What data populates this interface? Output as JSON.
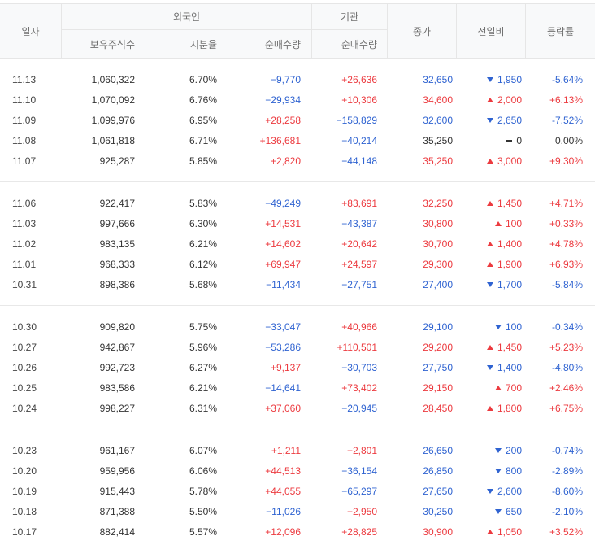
{
  "header": {
    "date": "일자",
    "foreign": "외국인",
    "institution": "기관",
    "close": "종가",
    "change": "전일비",
    "rate": "등락률",
    "foreign_shares": "보유주식수",
    "foreign_ratio": "지분율",
    "foreign_net": "순매수량",
    "institution_net": "순매수량"
  },
  "colors": {
    "up": "#ec3a3f",
    "down": "#2f63d1",
    "flat": "#333333"
  },
  "icons": {
    "up": "triangle-up-icon",
    "down": "triangle-down-icon",
    "flat": "dash-icon"
  },
  "groups": [
    {
      "rows": [
        {
          "date": "11.13",
          "foreign_shares": "1,060,322",
          "foreign_ratio": "6.70%",
          "foreign_net": "−9,770",
          "institution_net": "+26,636",
          "close": "32,650",
          "trend": "down",
          "change": "1,950",
          "rate": "-5.64%"
        },
        {
          "date": "11.10",
          "foreign_shares": "1,070,092",
          "foreign_ratio": "6.76%",
          "foreign_net": "−29,934",
          "institution_net": "+10,306",
          "close": "34,600",
          "trend": "up",
          "change": "2,000",
          "rate": "+6.13%"
        },
        {
          "date": "11.09",
          "foreign_shares": "1,099,976",
          "foreign_ratio": "6.95%",
          "foreign_net": "+28,258",
          "institution_net": "−158,829",
          "close": "32,600",
          "trend": "down",
          "change": "2,650",
          "rate": "-7.52%"
        },
        {
          "date": "11.08",
          "foreign_shares": "1,061,818",
          "foreign_ratio": "6.71%",
          "foreign_net": "+136,681",
          "institution_net": "−40,214",
          "close": "35,250",
          "trend": "flat",
          "change": "0",
          "rate": "0.00%"
        },
        {
          "date": "11.07",
          "foreign_shares": "925,287",
          "foreign_ratio": "5.85%",
          "foreign_net": "+2,820",
          "institution_net": "−44,148",
          "close": "35,250",
          "trend": "up",
          "change": "3,000",
          "rate": "+9.30%"
        }
      ]
    },
    {
      "rows": [
        {
          "date": "11.06",
          "foreign_shares": "922,417",
          "foreign_ratio": "5.83%",
          "foreign_net": "−49,249",
          "institution_net": "+83,691",
          "close": "32,250",
          "trend": "up",
          "change": "1,450",
          "rate": "+4.71%"
        },
        {
          "date": "11.03",
          "foreign_shares": "997,666",
          "foreign_ratio": "6.30%",
          "foreign_net": "+14,531",
          "institution_net": "−43,387",
          "close": "30,800",
          "trend": "up",
          "change": "100",
          "rate": "+0.33%"
        },
        {
          "date": "11.02",
          "foreign_shares": "983,135",
          "foreign_ratio": "6.21%",
          "foreign_net": "+14,602",
          "institution_net": "+20,642",
          "close": "30,700",
          "trend": "up",
          "change": "1,400",
          "rate": "+4.78%"
        },
        {
          "date": "11.01",
          "foreign_shares": "968,333",
          "foreign_ratio": "6.12%",
          "foreign_net": "+69,947",
          "institution_net": "+24,597",
          "close": "29,300",
          "trend": "up",
          "change": "1,900",
          "rate": "+6.93%"
        },
        {
          "date": "10.31",
          "foreign_shares": "898,386",
          "foreign_ratio": "5.68%",
          "foreign_net": "−11,434",
          "institution_net": "−27,751",
          "close": "27,400",
          "trend": "down",
          "change": "1,700",
          "rate": "-5.84%"
        }
      ]
    },
    {
      "rows": [
        {
          "date": "10.30",
          "foreign_shares": "909,820",
          "foreign_ratio": "5.75%",
          "foreign_net": "−33,047",
          "institution_net": "+40,966",
          "close": "29,100",
          "trend": "down",
          "change": "100",
          "rate": "-0.34%"
        },
        {
          "date": "10.27",
          "foreign_shares": "942,867",
          "foreign_ratio": "5.96%",
          "foreign_net": "−53,286",
          "institution_net": "+110,501",
          "close": "29,200",
          "trend": "up",
          "change": "1,450",
          "rate": "+5.23%"
        },
        {
          "date": "10.26",
          "foreign_shares": "992,723",
          "foreign_ratio": "6.27%",
          "foreign_net": "+9,137",
          "institution_net": "−30,703",
          "close": "27,750",
          "trend": "down",
          "change": "1,400",
          "rate": "-4.80%"
        },
        {
          "date": "10.25",
          "foreign_shares": "983,586",
          "foreign_ratio": "6.21%",
          "foreign_net": "−14,641",
          "institution_net": "+73,402",
          "close": "29,150",
          "trend": "up",
          "change": "700",
          "rate": "+2.46%"
        },
        {
          "date": "10.24",
          "foreign_shares": "998,227",
          "foreign_ratio": "6.31%",
          "foreign_net": "+37,060",
          "institution_net": "−20,945",
          "close": "28,450",
          "trend": "up",
          "change": "1,800",
          "rate": "+6.75%"
        }
      ]
    },
    {
      "rows": [
        {
          "date": "10.23",
          "foreign_shares": "961,167",
          "foreign_ratio": "6.07%",
          "foreign_net": "+1,211",
          "institution_net": "+2,801",
          "close": "26,650",
          "trend": "down",
          "change": "200",
          "rate": "-0.74%"
        },
        {
          "date": "10.20",
          "foreign_shares": "959,956",
          "foreign_ratio": "6.06%",
          "foreign_net": "+44,513",
          "institution_net": "−36,154",
          "close": "26,850",
          "trend": "down",
          "change": "800",
          "rate": "-2.89%"
        },
        {
          "date": "10.19",
          "foreign_shares": "915,443",
          "foreign_ratio": "5.78%",
          "foreign_net": "+44,055",
          "institution_net": "−65,297",
          "close": "27,650",
          "trend": "down",
          "change": "2,600",
          "rate": "-8.60%"
        },
        {
          "date": "10.18",
          "foreign_shares": "871,388",
          "foreign_ratio": "5.50%",
          "foreign_net": "−11,026",
          "institution_net": "+2,950",
          "close": "30,250",
          "trend": "down",
          "change": "650",
          "rate": "-2.10%"
        },
        {
          "date": "10.17",
          "foreign_shares": "882,414",
          "foreign_ratio": "5.57%",
          "foreign_net": "+12,096",
          "institution_net": "+28,825",
          "close": "30,900",
          "trend": "up",
          "change": "1,050",
          "rate": "+3.52%"
        }
      ]
    }
  ]
}
